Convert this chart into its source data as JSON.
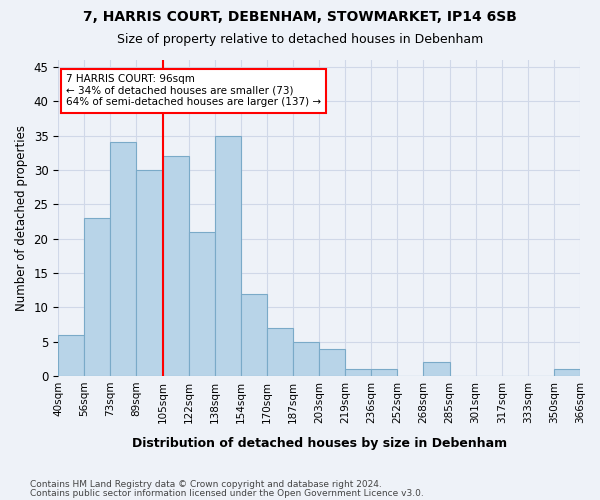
{
  "title_line1": "7, HARRIS COURT, DEBENHAM, STOWMARKET, IP14 6SB",
  "title_line2": "Size of property relative to detached houses in Debenham",
  "xlabel": "Distribution of detached houses by size in Debenham",
  "ylabel": "Number of detached properties",
  "bar_values": [
    6,
    23,
    34,
    30,
    32,
    21,
    35,
    12,
    7,
    5,
    4,
    1,
    1,
    0,
    2,
    0,
    0,
    0,
    0,
    1
  ],
  "categories": [
    "40sqm",
    "56sqm",
    "73sqm",
    "89sqm",
    "105sqm",
    "122sqm",
    "138sqm",
    "154sqm",
    "170sqm",
    "187sqm",
    "203sqm",
    "219sqm",
    "236sqm",
    "252sqm",
    "268sqm",
    "285sqm",
    "301sqm",
    "317sqm",
    "333sqm",
    "350sqm"
  ],
  "bar_color": "#b8d4e8",
  "bar_edge_color": "#7aaac8",
  "grid_color": "#d0d8e8",
  "annotation_text": "7 HARRIS COURT: 96sqm\n← 34% of detached houses are smaller (73)\n64% of semi-detached houses are larger (137) →",
  "annotation_box_color": "white",
  "annotation_box_edge_color": "red",
  "vline_x": 3.5,
  "vline_color": "red",
  "ylim": [
    0,
    46
  ],
  "yticks": [
    0,
    5,
    10,
    15,
    20,
    25,
    30,
    35,
    40,
    45
  ],
  "footer_line1": "Contains HM Land Registry data © Crown copyright and database right 2024.",
  "footer_line2": "Contains public sector information licensed under the Open Government Licence v3.0.",
  "background_color": "#eef2f8",
  "extra_tick": "366sqm"
}
